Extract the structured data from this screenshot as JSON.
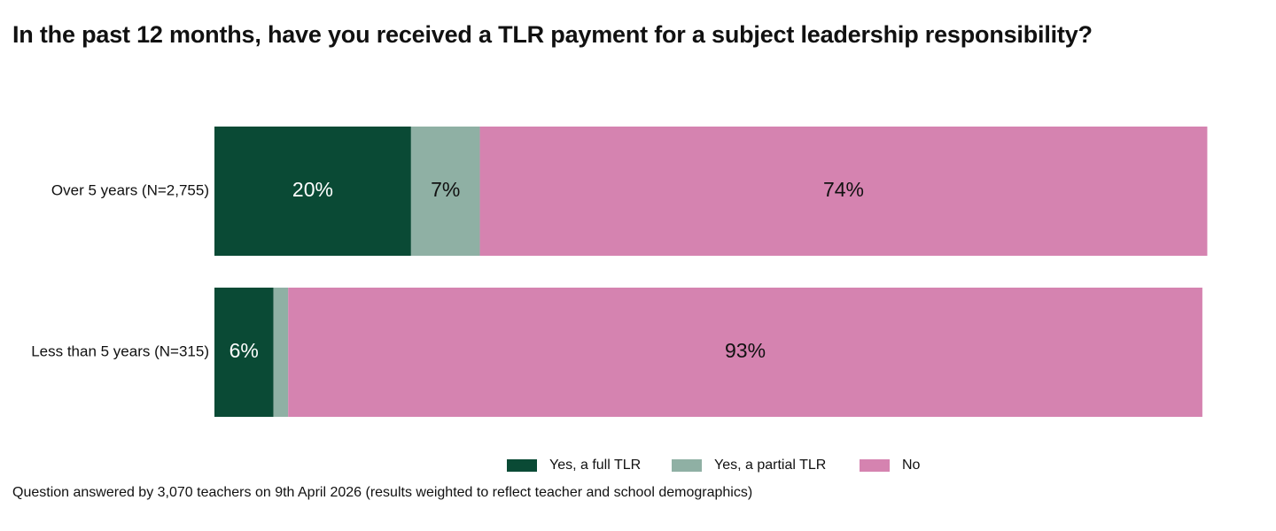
{
  "chart_data": {
    "type": "bar",
    "orientation": "horizontal",
    "stacked": true,
    "title": "In the past 12 months, have you received a TLR payment for a subject leadership responsibility?",
    "categories": [
      "Over 5 years (N=2,755)",
      "Less than 5 years (N=315)"
    ],
    "series": [
      {
        "name": "Yes, a full TLR",
        "values": [
          20,
          6
        ],
        "labels": [
          "20%",
          "6%"
        ],
        "color": "#0a4a35",
        "label_color": "#ffffff"
      },
      {
        "name": "Yes, a partial TLR",
        "values": [
          7,
          1.5
        ],
        "labels": [
          "7%",
          ""
        ],
        "color": "#8fb0a4",
        "label_color": "#111111"
      },
      {
        "name": "No",
        "values": [
          74,
          93
        ],
        "labels": [
          "74%",
          "93%"
        ],
        "color": "#d583b0",
        "label_color": "#111111"
      }
    ],
    "xlim": [
      0,
      101.5
    ],
    "grid": false,
    "legend_position": "bottom"
  },
  "footnote": "Question answered by 3,070 teachers on 9th April 2026 (results weighted to reflect teacher and school demographics)"
}
